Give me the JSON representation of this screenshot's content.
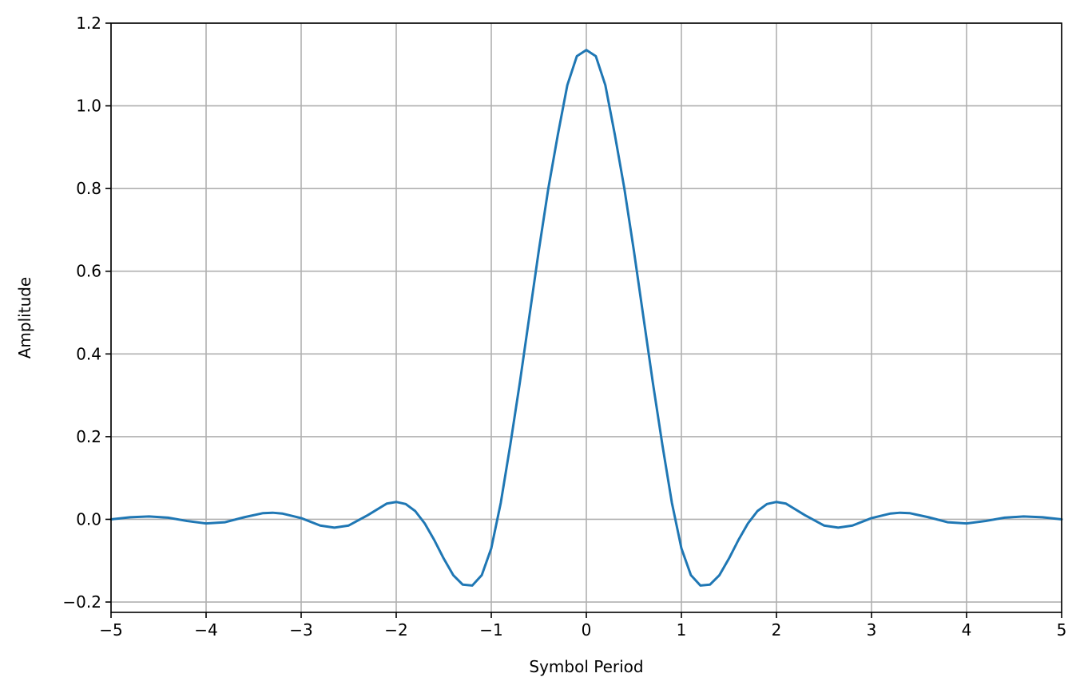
{
  "chart_data": {
    "type": "line",
    "title": "",
    "xlabel": "Symbol Period",
    "ylabel": "Amplitude",
    "xlim": [
      -5,
      5
    ],
    "ylim": [
      -0.225,
      1.2
    ],
    "xticks": [
      -5,
      -4,
      -3,
      -2,
      -1,
      0,
      1,
      2,
      3,
      4,
      5
    ],
    "xtick_labels": [
      "−5",
      "−4",
      "−3",
      "−2",
      "−1",
      "0",
      "1",
      "2",
      "3",
      "4",
      "5"
    ],
    "yticks": [
      -0.2,
      0.0,
      0.2,
      0.4,
      0.6,
      0.8,
      1.0,
      1.2
    ],
    "ytick_labels": [
      "−0.2",
      "0.0",
      "0.2",
      "0.4",
      "0.6",
      "0.8",
      "1.0",
      "1.2"
    ],
    "grid": true,
    "line_color": "#1f77b4",
    "series": [
      {
        "x": [
          -5.0,
          -4.8,
          -4.6,
          -4.4,
          -4.2,
          -4.0,
          -3.8,
          -3.6,
          -3.4,
          -3.3,
          -3.2,
          -3.0,
          -2.8,
          -2.65,
          -2.5,
          -2.3,
          -2.1,
          -2.0,
          -1.9,
          -1.8,
          -1.7,
          -1.6,
          -1.5,
          -1.4,
          -1.3,
          -1.2,
          -1.1,
          -1.0,
          -0.9,
          -0.8,
          -0.7,
          -0.6,
          -0.5,
          -0.4,
          -0.3,
          -0.2,
          -0.1,
          0.0,
          0.1,
          0.2,
          0.3,
          0.4,
          0.5,
          0.6,
          0.7,
          0.8,
          0.9,
          1.0,
          1.1,
          1.2,
          1.3,
          1.4,
          1.5,
          1.6,
          1.7,
          1.8,
          1.9,
          2.0,
          2.1,
          2.3,
          2.5,
          2.65,
          2.8,
          3.0,
          3.2,
          3.3,
          3.4,
          3.6,
          3.8,
          4.0,
          4.2,
          4.4,
          4.6,
          4.8,
          5.0
        ],
        "values": [
          0.0,
          0.005,
          0.007,
          0.004,
          -0.004,
          -0.01,
          -0.007,
          0.005,
          0.015,
          0.016,
          0.014,
          0.003,
          -0.015,
          -0.02,
          -0.015,
          0.01,
          0.038,
          0.042,
          0.037,
          0.02,
          -0.01,
          -0.05,
          -0.095,
          -0.135,
          -0.158,
          -0.16,
          -0.135,
          -0.07,
          0.04,
          0.18,
          0.33,
          0.49,
          0.65,
          0.8,
          0.93,
          1.05,
          1.12,
          1.135,
          1.12,
          1.05,
          0.93,
          0.8,
          0.65,
          0.49,
          0.33,
          0.18,
          0.04,
          -0.07,
          -0.135,
          -0.16,
          -0.158,
          -0.135,
          -0.095,
          -0.05,
          -0.01,
          0.02,
          0.037,
          0.042,
          0.038,
          0.01,
          -0.015,
          -0.02,
          -0.015,
          0.003,
          0.014,
          0.016,
          0.015,
          0.005,
          -0.007,
          -0.01,
          -0.004,
          0.004,
          0.007,
          0.005,
          0.0
        ]
      }
    ]
  }
}
